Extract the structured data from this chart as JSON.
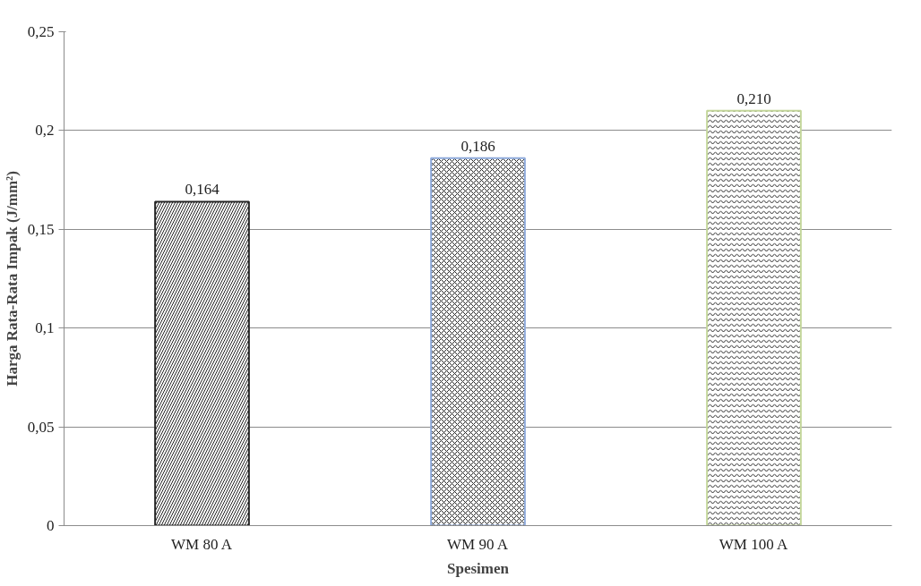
{
  "chart_data": {
    "type": "bar",
    "xlabel": "Spesimen",
    "ylabel": "Harga Rata-Rata Impak (J/mm²)",
    "categories": [
      "WM 80 A",
      "WM 90 A",
      "WM 100 A"
    ],
    "values": [
      0.164,
      0.186,
      0.21
    ],
    "colors": [
      "#262626",
      "#8eaadb",
      "#c4d79b"
    ],
    "value_labels": [
      "0,164",
      "0,186",
      "0,210"
    ],
    "ylim": [
      0,
      0.25
    ],
    "yticks": [
      {
        "value": 0,
        "label": "0"
      },
      {
        "value": 0.05,
        "label": "0,05"
      },
      {
        "value": 0.1,
        "label": "0,1"
      },
      {
        "value": 0.15,
        "label": "0,15"
      },
      {
        "value": 0.2,
        "label": "0,2"
      },
      {
        "value": 0.25,
        "label": "0,25"
      }
    ],
    "grid": "y"
  }
}
